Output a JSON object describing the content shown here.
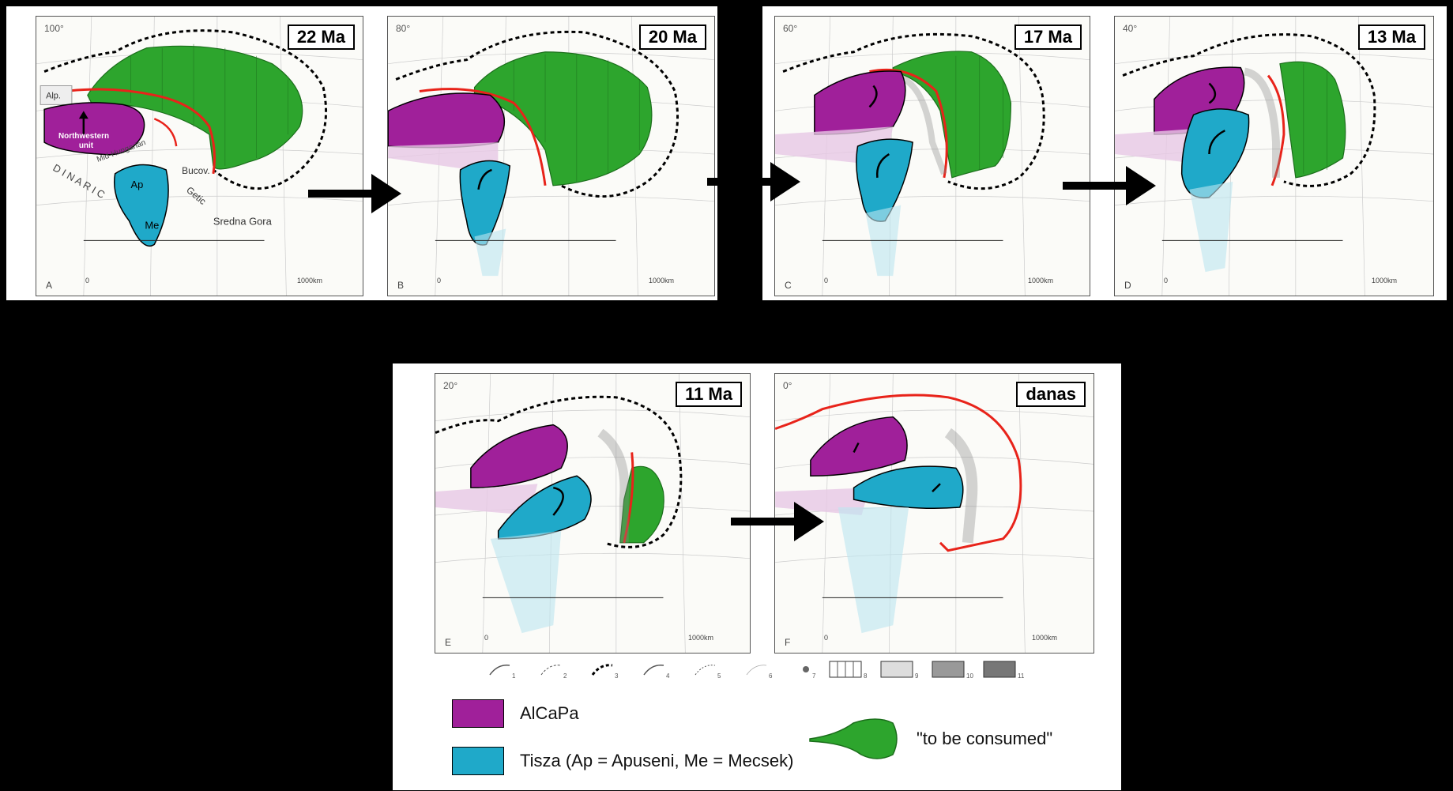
{
  "panels": [
    {
      "letter": "A",
      "age": "22 Ma",
      "corner": "100°"
    },
    {
      "letter": "B",
      "age": "20 Ma",
      "corner": "80°"
    },
    {
      "letter": "C",
      "age": "17 Ma",
      "corner": "60°"
    },
    {
      "letter": "D",
      "age": "13 Ma",
      "corner": "40°"
    },
    {
      "letter": "E",
      "age": "11 Ma",
      "corner": "20°"
    },
    {
      "letter": "F",
      "age": "danas",
      "corner": "0°"
    }
  ],
  "scale": {
    "start": "0",
    "end": "1000km",
    "unit_prefix": "km"
  },
  "panel_a_labels": {
    "alp": "Alp.",
    "northwestern": "Northwestern",
    "unit": "unit",
    "ap": "Ap",
    "me": "Me",
    "dinaric": "D I N A R I C",
    "bucov": "Bucov.",
    "getic": "Getic",
    "sredna_gora": "Sredna Gora",
    "mid_hungarian": "Mid-Hungarian"
  },
  "legend": {
    "symbols": [
      "1",
      "2",
      "3",
      "4",
      "5",
      "6",
      "7",
      "8",
      "9",
      "10",
      "11"
    ],
    "alcapa": "AlCaPa",
    "tisza": "Tisza (Ap = Apuseni, Me = Mecsek)",
    "consumed": "\"to be consumed\""
  },
  "colors": {
    "alcapa": "#a0209a",
    "tisza": "#1fa9c9",
    "consumed": "#2da52d",
    "thrust": "#e8231a"
  }
}
